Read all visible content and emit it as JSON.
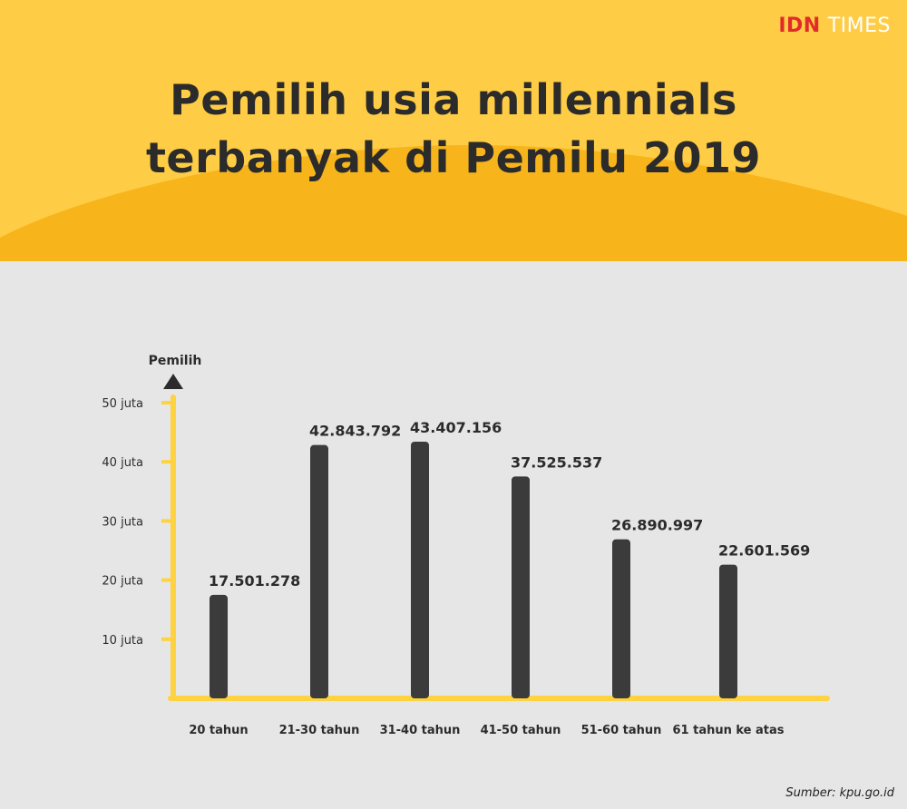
{
  "header": {
    "brand_main": "IDN",
    "brand_sub": "TIMES",
    "title_line1": "Pemilih usia millennials",
    "title_line2": "terbanyak di Pemilu 2019"
  },
  "colors": {
    "header_yellow": "#ffcc45",
    "header_orange": "#f7b51b",
    "background": "#e6e6e6",
    "axis": "#ffd23f",
    "bar": "#3b3b3b",
    "logo_red": "#e12b2b",
    "text": "#2b2b2b"
  },
  "chart_data": {
    "type": "bar",
    "ylabel": "Pemilih",
    "ylim": [
      0,
      50000000
    ],
    "y_ticks": [
      {
        "value": 10000000,
        "label": "10 juta"
      },
      {
        "value": 20000000,
        "label": "20 juta"
      },
      {
        "value": 30000000,
        "label": "30 juta"
      },
      {
        "value": 40000000,
        "label": "40 juta"
      },
      {
        "value": 50000000,
        "label": "50 juta"
      }
    ],
    "categories": [
      "20 tahun",
      "21-30 tahun",
      "31-40 tahun",
      "41-50 tahun",
      "51-60 tahun",
      "61 tahun ke atas"
    ],
    "values": [
      17501278,
      42843792,
      43407156,
      37525537,
      26890997,
      22601569
    ],
    "value_labels": [
      "17.501.278",
      "42.843.792",
      "43.407.156",
      "37.525.537",
      "26.890.997",
      "22.601.569"
    ],
    "grid": false
  },
  "source": "Sumber: kpu.go.id"
}
